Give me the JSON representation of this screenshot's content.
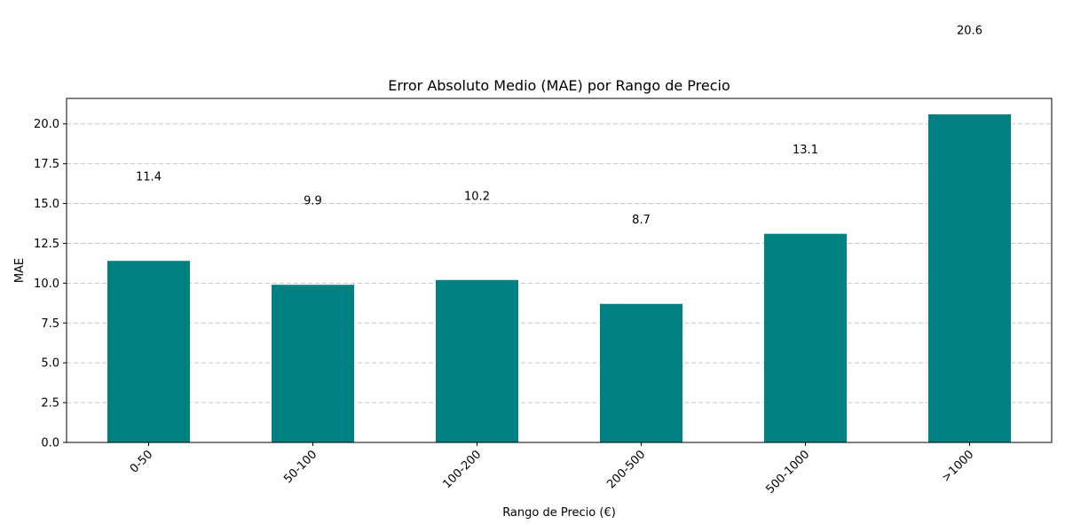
{
  "chart_data": {
    "type": "bar",
    "title": "Error Absoluto Medio (MAE) por Rango de Precio",
    "xlabel": "Rango de Precio (€)",
    "ylabel": "MAE",
    "categories": [
      "0-50",
      "50-100",
      "100-200",
      "200-500",
      "500-1000",
      ">1000"
    ],
    "values": [
      11.4,
      9.9,
      10.2,
      8.7,
      13.1,
      20.6
    ],
    "value_labels": [
      "11.4",
      "9.9",
      "10.2",
      "8.7",
      "13.1",
      "20.6"
    ],
    "ylim": [
      0,
      21.6
    ],
    "yticks": [
      0.0,
      2.5,
      5.0,
      7.5,
      10.0,
      12.5,
      15.0,
      17.5,
      20.0
    ],
    "ytick_labels": [
      "0.0",
      "2.5",
      "5.0",
      "7.5",
      "10.0",
      "12.5",
      "15.0",
      "17.5",
      "20.0"
    ],
    "grid": "y-dashed",
    "bar_color": "#008080"
  }
}
